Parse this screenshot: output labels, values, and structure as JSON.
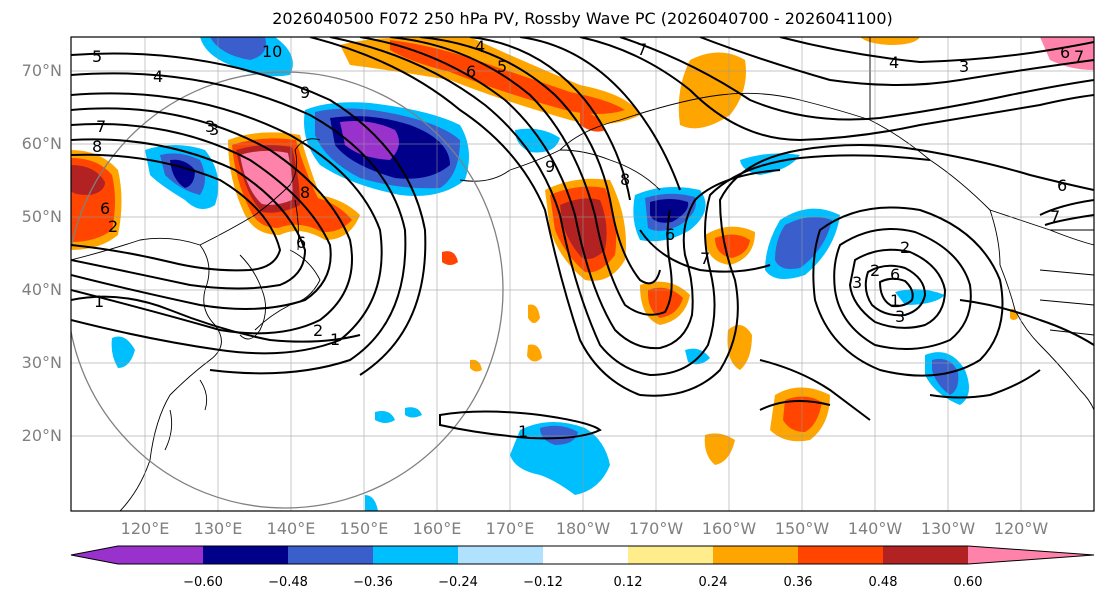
{
  "title": "2026040500 F072 250 hPa PV, Rossby Wave PC (2026040700 - 2026041100)",
  "lat_labels": [
    "70°N",
    "60°N",
    "50°N",
    "40°N",
    "30°N",
    "20°N"
  ],
  "lon_labels": [
    "120°E",
    "130°E",
    "140°E",
    "150°E",
    "160°E",
    "170°E",
    "180°W",
    "170°W",
    "160°W",
    "150°W",
    "140°W",
    "130°W",
    "120°W"
  ],
  "colorbar": {
    "ticks": [
      "−0.60",
      "−0.48",
      "−0.36",
      "−0.24",
      "−0.12",
      "0.12",
      "0.24",
      "0.36",
      "0.48",
      "0.60"
    ],
    "colors": [
      "#9932cc",
      "#00008b",
      "#3a5fcd",
      "#00bfff",
      "#b0e2ff",
      "#ffffff",
      "#ffec8b",
      "#ffa500",
      "#ff4500",
      "#b22222",
      "#ff82ab"
    ]
  },
  "contour_labels": [
    "5",
    "10",
    "4",
    "6",
    "5",
    "7",
    "4",
    "3",
    "4",
    "9",
    "7",
    "3",
    "8",
    "6",
    "2",
    "1",
    "6",
    "9",
    "8",
    "8",
    "7",
    "6",
    "2",
    "1",
    "3",
    "6",
    "2",
    "6",
    "7",
    "1",
    "6",
    "7",
    "3",
    "2",
    "1",
    "3"
  ]
}
